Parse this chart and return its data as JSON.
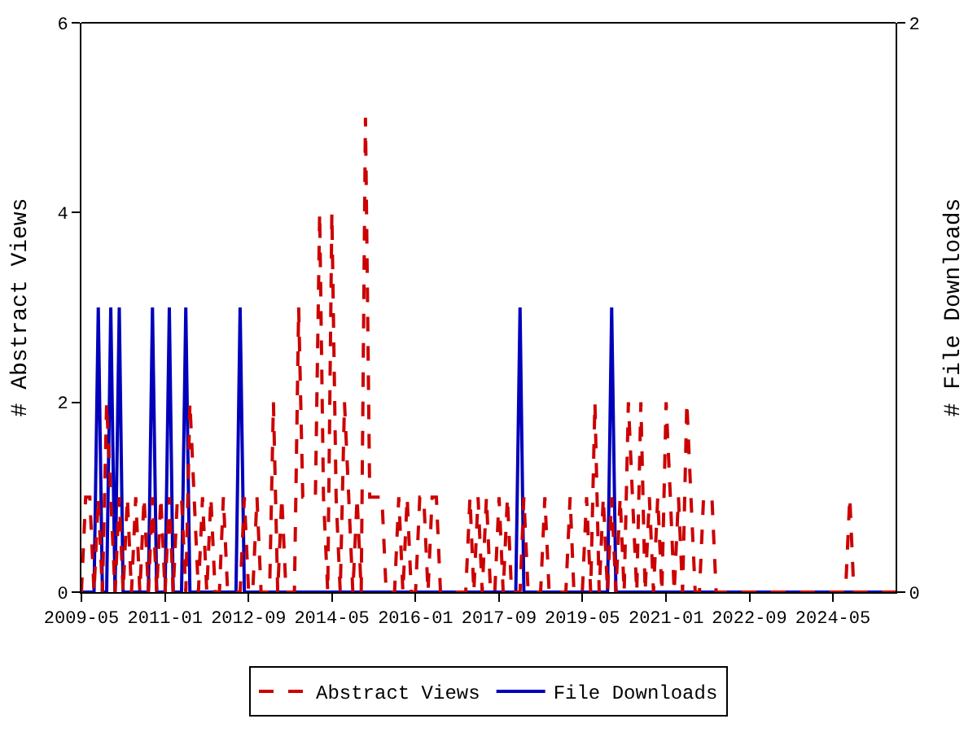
{
  "chart_data": {
    "type": "line",
    "xlabel": null,
    "ylabel": "# Abstract Views",
    "y2label": "# File Downloads",
    "x": [
      "2009-05",
      "2009-06",
      "2009-07",
      "2009-08",
      "2009-09",
      "2009-10",
      "2009-11",
      "2009-12",
      "2010-01",
      "2010-02",
      "2010-03",
      "2010-04",
      "2010-05",
      "2010-06",
      "2010-07",
      "2010-08",
      "2010-09",
      "2010-10",
      "2010-11",
      "2010-12",
      "2011-01",
      "2011-02",
      "2011-03",
      "2011-04",
      "2011-05",
      "2011-06",
      "2011-07",
      "2011-08",
      "2011-09",
      "2011-10",
      "2011-11",
      "2011-12",
      "2012-01",
      "2012-02",
      "2012-03",
      "2012-04",
      "2012-05",
      "2012-06",
      "2012-07",
      "2012-08",
      "2012-09",
      "2012-10",
      "2012-11",
      "2012-12",
      "2013-01",
      "2013-02",
      "2013-03",
      "2013-04",
      "2013-05",
      "2013-06",
      "2013-07",
      "2013-08",
      "2013-09",
      "2013-10",
      "2013-11",
      "2013-12",
      "2014-01",
      "2014-02",
      "2014-03",
      "2014-04",
      "2014-05",
      "2014-06",
      "2014-07",
      "2014-08",
      "2014-09",
      "2014-10",
      "2014-11",
      "2014-12",
      "2015-01",
      "2015-02",
      "2015-03",
      "2015-04",
      "2015-05",
      "2015-06",
      "2015-07",
      "2015-08",
      "2015-09",
      "2015-10",
      "2015-11",
      "2015-12",
      "2016-01",
      "2016-02",
      "2016-03",
      "2016-04",
      "2016-05",
      "2016-06",
      "2016-07",
      "2016-08",
      "2016-09",
      "2016-10",
      "2016-11",
      "2016-12",
      "2017-01",
      "2017-02",
      "2017-03",
      "2017-04",
      "2017-05",
      "2017-06",
      "2017-07",
      "2017-08",
      "2017-09",
      "2017-10",
      "2017-11",
      "2017-12",
      "2018-01",
      "2018-02",
      "2018-03",
      "2018-04",
      "2018-05",
      "2018-06",
      "2018-07",
      "2018-08",
      "2018-09",
      "2018-10",
      "2018-11",
      "2018-12",
      "2019-01",
      "2019-02",
      "2019-03",
      "2019-04",
      "2019-05",
      "2019-06",
      "2019-07",
      "2019-08",
      "2019-09",
      "2019-10",
      "2019-11",
      "2019-12",
      "2020-01",
      "2020-02",
      "2020-03",
      "2020-04",
      "2020-05",
      "2020-06",
      "2020-07",
      "2020-08",
      "2020-09",
      "2020-10",
      "2020-11",
      "2020-12",
      "2021-01",
      "2021-02",
      "2021-03",
      "2021-04",
      "2021-05",
      "2021-06",
      "2021-07",
      "2021-08",
      "2021-09",
      "2021-10",
      "2021-11",
      "2021-12",
      "2022-01",
      "2022-02",
      "2022-03",
      "2022-04",
      "2022-05",
      "2022-06",
      "2022-07",
      "2022-08",
      "2022-09",
      "2022-10",
      "2022-11",
      "2022-12",
      "2023-01",
      "2023-02",
      "2023-03",
      "2023-04",
      "2023-05",
      "2023-06",
      "2023-07",
      "2023-08",
      "2023-09",
      "2023-10",
      "2023-11",
      "2023-12",
      "2024-01",
      "2024-02",
      "2024-03",
      "2024-04",
      "2024-05",
      "2024-06",
      "2024-07",
      "2024-08",
      "2024-09",
      "2024-10",
      "2024-11",
      "2024-12",
      "2025-01",
      "2025-02",
      "2025-03",
      "2025-04",
      "2025-05",
      "2025-06",
      "2025-07",
      "2025-08"
    ],
    "series": [
      {
        "name": "Abstract Views",
        "color": "#cc0000",
        "line_style": "dashed",
        "values": [
          0,
          1,
          1,
          0,
          1,
          0,
          2,
          1,
          0,
          1,
          0,
          1,
          0,
          1,
          0,
          1,
          0,
          1,
          0,
          1,
          0,
          1,
          0,
          1,
          1,
          0,
          2,
          1,
          0,
          1,
          0,
          1,
          0,
          0,
          1,
          0,
          0,
          0,
          0,
          1,
          0,
          0,
          1,
          0,
          0,
          0,
          2,
          0,
          1,
          0,
          0,
          0,
          3,
          1,
          1,
          1,
          1,
          4,
          1,
          0,
          4,
          1,
          0,
          2,
          1,
          0,
          1,
          0,
          5,
          1,
          1,
          1,
          1,
          0,
          0,
          0,
          1,
          0,
          1,
          0,
          0,
          1,
          1,
          0,
          1,
          1,
          0,
          0,
          0,
          0,
          0,
          0,
          0,
          1,
          0,
          1,
          0,
          1,
          0,
          0,
          1,
          0,
          1,
          0,
          0,
          0,
          1,
          0,
          0,
          0,
          0,
          1,
          0,
          0,
          0,
          0,
          0,
          1,
          0,
          0,
          0,
          1,
          0,
          2,
          0,
          1,
          0,
          1,
          0,
          1,
          0,
          2,
          1,
          0,
          2,
          0,
          1,
          0,
          1,
          0,
          2,
          1,
          0,
          1,
          0,
          2,
          1,
          0,
          0,
          1,
          1,
          1,
          0,
          0,
          0,
          0,
          0,
          0,
          0,
          0,
          0,
          0,
          0,
          0,
          0,
          0,
          0,
          0,
          0,
          0,
          0,
          0,
          0,
          0,
          0,
          0,
          0,
          0,
          0,
          0,
          0,
          0,
          0,
          0,
          1,
          0,
          0,
          0,
          0,
          0,
          0,
          0,
          0,
          0,
          0,
          0
        ]
      },
      {
        "name": "File Downloads",
        "color": "#0000bb",
        "line_style": "solid",
        "axis": "y2",
        "values": [
          0,
          0,
          0,
          0,
          1,
          0,
          0,
          1,
          0,
          1,
          0,
          0,
          0,
          0,
          0,
          0,
          0,
          1,
          0,
          0,
          0,
          1,
          0,
          0,
          0,
          1,
          0,
          0,
          0,
          0,
          0,
          0,
          0,
          0,
          0,
          0,
          0,
          0,
          1,
          0,
          0,
          0,
          0,
          0,
          0,
          0,
          0,
          0,
          0,
          0,
          0,
          0,
          0,
          0,
          0,
          0,
          0,
          0,
          0,
          0,
          0,
          0,
          0,
          0,
          0,
          0,
          0,
          0,
          0,
          0,
          0,
          0,
          0,
          0,
          0,
          0,
          0,
          0,
          0,
          0,
          0,
          0,
          0,
          0,
          0,
          0,
          0,
          0,
          0,
          0,
          0,
          0,
          0,
          0,
          0,
          0,
          0,
          0,
          0,
          0,
          0,
          0,
          0,
          0,
          0,
          1,
          0,
          0,
          0,
          0,
          0,
          0,
          0,
          0,
          0,
          0,
          0,
          0,
          0,
          0,
          0,
          0,
          0,
          0,
          0,
          0,
          0,
          1,
          0,
          0,
          0,
          0,
          0,
          0,
          0,
          0,
          0,
          0,
          0,
          0,
          0,
          0,
          0,
          0,
          0,
          0,
          0,
          0,
          0,
          0,
          0,
          0,
          0,
          0,
          0,
          0,
          0,
          0,
          0,
          0,
          0,
          0,
          0,
          0,
          0,
          0,
          0,
          0,
          0,
          0,
          0,
          0,
          0,
          0,
          0,
          0,
          0,
          0,
          0,
          0,
          0,
          0,
          0,
          0,
          0,
          0,
          0,
          0,
          0,
          0,
          0,
          0,
          0,
          0,
          0,
          0
        ]
      }
    ],
    "xlim": [
      "2009-05",
      "2025-08"
    ],
    "xticks": [
      "2009-05",
      "2011-01",
      "2012-09",
      "2014-05",
      "2016-01",
      "2017-09",
      "2019-05",
      "2021-01",
      "2022-09",
      "2024-05"
    ],
    "ylim": [
      0,
      6
    ],
    "yticks": [
      0,
      2,
      4,
      6
    ],
    "y2lim": [
      0,
      2
    ],
    "y2ticks": [
      0,
      2
    ],
    "legend": "bottom",
    "marker": "none"
  }
}
